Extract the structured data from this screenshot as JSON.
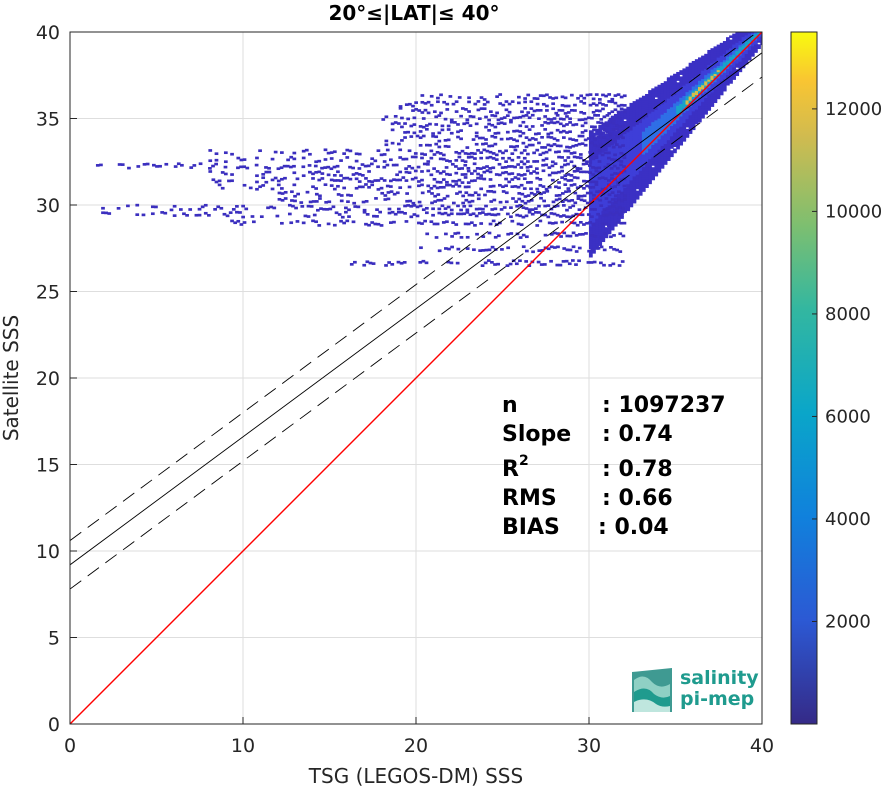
{
  "chart_data": {
    "type": "heatmap",
    "title": "20°≤|LAT|≤ 40°",
    "xlabel": "TSG (LEGOS-DM) SSS",
    "ylabel": "Satellite SSS",
    "xlim": [
      0,
      40
    ],
    "ylim": [
      0,
      40
    ],
    "xticks": [
      "0",
      "10",
      "20",
      "30",
      "40"
    ],
    "yticks": [
      "0",
      "5",
      "10",
      "15",
      "20",
      "25",
      "30",
      "35",
      "40"
    ],
    "grid": true,
    "colorbar": {
      "range": [
        0,
        13500
      ],
      "ticks": [
        "2000",
        "4000",
        "6000",
        "8000",
        "10000",
        "12000"
      ],
      "colormap": "parula"
    },
    "lines": [
      {
        "kind": "identity",
        "color": "#ff0000",
        "x": [
          0,
          40
        ],
        "y": [
          0,
          40
        ]
      },
      {
        "kind": "fit",
        "color": "#000000",
        "x": [
          0,
          40
        ],
        "y": [
          9.2,
          38.8
        ]
      },
      {
        "kind": "fit-upper",
        "color": "#000000",
        "dashed": true,
        "x": [
          0,
          40
        ],
        "y": [
          10.6,
          40.2
        ]
      },
      {
        "kind": "fit-lower",
        "color": "#000000",
        "dashed": true,
        "x": [
          0,
          40
        ],
        "y": [
          7.8,
          37.4
        ]
      }
    ],
    "density_regions": [
      {
        "x": [
          30,
          40
        ],
        "y": [
          29.5,
          40
        ],
        "level": "high"
      },
      {
        "x": [
          1.5,
          32
        ],
        "y": [
          26.5,
          36.5
        ],
        "level": "low"
      }
    ],
    "stats": [
      {
        "label": "n",
        "value": ": 1097237"
      },
      {
        "label": "Slope",
        "value": ": 0.74"
      },
      {
        "label": "R",
        "sup": "2",
        "value": ": 0.78"
      },
      {
        "label": "RMS",
        "value": ": 0.66"
      },
      {
        "label": "BIAS",
        "value": ": 0.04"
      }
    ]
  },
  "logo": {
    "line1": "salinity",
    "line2": "pi-mep"
  }
}
